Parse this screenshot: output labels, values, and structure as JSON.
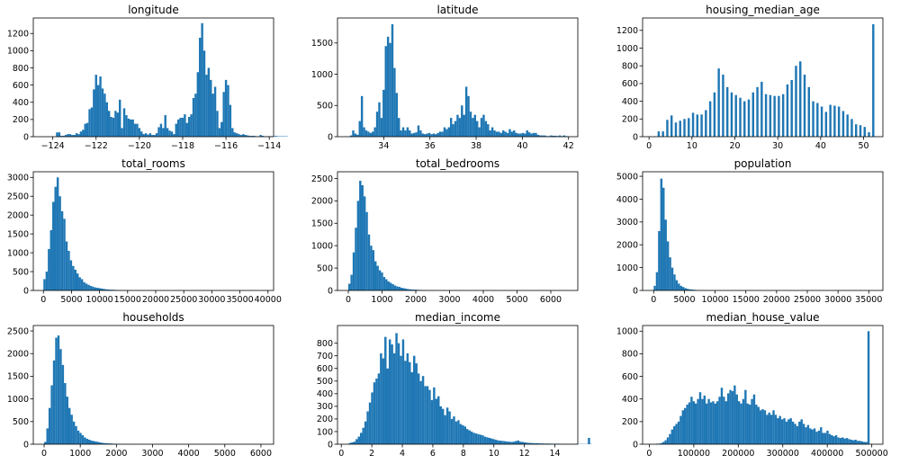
{
  "bar_color": "#1f77b4",
  "chart_data": [
    {
      "type": "bar",
      "title": "longitude",
      "xlim": [
        -124.9,
        -113.8
      ],
      "ylim": [
        0,
        1380
      ],
      "xticks": [
        -124,
        -122,
        -120,
        -118,
        -116,
        -114
      ],
      "yticks": [
        0,
        200,
        400,
        600,
        800,
        1000,
        1200
      ],
      "bin_start": -124.35,
      "bin_width": 0.1,
      "values": [
        0,
        0,
        0,
        0,
        0,
        50,
        50,
        10,
        10,
        20,
        30,
        30,
        20,
        20,
        40,
        30,
        60,
        80,
        150,
        160,
        320,
        340,
        550,
        720,
        600,
        700,
        560,
        500,
        400,
        300,
        230,
        220,
        300,
        280,
        430,
        100,
        330,
        250,
        210,
        200,
        200,
        150,
        150,
        100,
        60,
        30,
        40,
        25,
        40,
        20,
        20,
        40,
        110,
        150,
        100,
        250,
        100,
        70,
        60,
        30,
        150,
        200,
        220,
        220,
        260,
        160,
        230,
        260,
        450,
        500,
        750,
        1150,
        1320,
        1000,
        720,
        800,
        660,
        500,
        580,
        300,
        100,
        170,
        520,
        660,
        600,
        370,
        100,
        50,
        40,
        30,
        20,
        30,
        20,
        15,
        10,
        10,
        10,
        5,
        5,
        20,
        10,
        5,
        5,
        5,
        5,
        5,
        10,
        5,
        5,
        5,
        5,
        5
      ]
    },
    {
      "type": "bar",
      "title": "latitude",
      "xlim": [
        32.0,
        42.4
      ],
      "ylim": [
        0,
        1900
      ],
      "xticks": [
        34,
        36,
        38,
        40,
        42
      ],
      "yticks": [
        0,
        500,
        1000,
        1500
      ],
      "bin_start": 32.54,
      "bin_width": 0.0941,
      "values": [
        20,
        100,
        50,
        30,
        250,
        650,
        150,
        100,
        80,
        60,
        80,
        150,
        400,
        550,
        300,
        750,
        1450,
        1600,
        1500,
        1800,
        1100,
        700,
        300,
        100,
        150,
        100,
        150,
        100,
        50,
        60,
        70,
        180,
        100,
        50,
        40,
        50,
        60,
        40,
        50,
        40,
        60,
        80,
        80,
        150,
        120,
        150,
        300,
        200,
        250,
        350,
        300,
        500,
        350,
        800,
        650,
        400,
        300,
        350,
        250,
        150,
        300,
        350,
        250,
        200,
        100,
        150,
        100,
        80,
        80,
        60,
        100,
        80,
        60,
        120,
        80,
        100,
        60,
        50,
        50,
        60,
        50,
        100,
        70,
        50,
        60,
        60,
        30,
        20,
        20,
        20,
        10,
        10,
        20,
        15,
        15,
        10,
        20,
        10,
        20,
        10
      ]
    },
    {
      "type": "bar",
      "title": "housing_median_age",
      "xlim": [
        -1.5,
        54.5
      ],
      "ylim": [
        0,
        1340
      ],
      "xticks": [
        0,
        10,
        20,
        30,
        40,
        50
      ],
      "yticks": [
        0,
        200,
        400,
        600,
        800,
        1000,
        1200
      ],
      "bin_start": 1,
      "bin_width": 0.51,
      "x_values": [
        1,
        2,
        3,
        4,
        5,
        6,
        7,
        8,
        9,
        10,
        11,
        12,
        13,
        14,
        15,
        16,
        17,
        18,
        19,
        20,
        21,
        22,
        23,
        24,
        25,
        26,
        27,
        28,
        29,
        30,
        31,
        32,
        33,
        34,
        35,
        36,
        37,
        38,
        39,
        40,
        41,
        42,
        43,
        44,
        45,
        46,
        47,
        48,
        49,
        50,
        51,
        52
      ],
      "values": [
        5,
        60,
        60,
        190,
        240,
        160,
        180,
        200,
        210,
        270,
        250,
        250,
        300,
        400,
        500,
        770,
        700,
        560,
        500,
        470,
        440,
        400,
        420,
        500,
        560,
        620,
        480,
        470,
        460,
        460,
        480,
        590,
        640,
        800,
        850,
        700,
        560,
        400,
        380,
        340,
        280,
        360,
        350,
        340,
        290,
        250,
        200,
        140,
        130,
        110,
        50,
        1270
      ]
    },
    {
      "type": "bar",
      "title": "total_rooms",
      "xlim": [
        -1800,
        41000
      ],
      "ylim": [
        0,
        3150
      ],
      "xticks": [
        0,
        5000,
        10000,
        15000,
        20000,
        25000,
        30000,
        35000,
        40000
      ],
      "yticks": [
        0,
        500,
        1000,
        1500,
        2000,
        2500,
        3000
      ],
      "bin_start": 0,
      "bin_width": 393,
      "values": [
        300,
        500,
        1100,
        1600,
        2350,
        2750,
        3000,
        2500,
        2100,
        1900,
        1300,
        1050,
        800,
        650,
        550,
        450,
        350,
        300,
        220,
        180,
        150,
        120,
        100,
        80,
        70,
        60,
        50,
        40,
        30,
        25,
        20,
        18,
        15,
        12,
        10,
        8,
        6,
        5,
        5,
        4,
        4,
        3,
        3,
        3,
        2,
        2,
        2,
        2,
        2,
        1,
        1,
        1,
        1,
        1,
        1,
        1
      ]
    },
    {
      "type": "bar",
      "title": "total_bedrooms",
      "xlim": [
        -320,
        6800
      ],
      "ylim": [
        0,
        2650
      ],
      "xticks": [
        0,
        1000,
        2000,
        3000,
        4000,
        5000,
        6000
      ],
      "yticks": [
        0,
        500,
        1000,
        1500,
        2000,
        2500
      ],
      "bin_start": 0,
      "bin_width": 64.5,
      "values": [
        150,
        350,
        850,
        1400,
        2000,
        2450,
        2350,
        2100,
        1750,
        1250,
        1000,
        900,
        650,
        550,
        450,
        400,
        300,
        250,
        200,
        170,
        140,
        110,
        90,
        80,
        60,
        50,
        40,
        30,
        25,
        20,
        18,
        15,
        12,
        10,
        8,
        6,
        5,
        5,
        4,
        3,
        3,
        2,
        2,
        2,
        1,
        1,
        1,
        1,
        1,
        1
      ]
    },
    {
      "type": "bar",
      "title": "population",
      "xlim": [
        -1800,
        37300
      ],
      "ylim": [
        0,
        5200
      ],
      "xticks": [
        0,
        5000,
        10000,
        15000,
        20000,
        25000,
        30000,
        35000
      ],
      "yticks": [
        0,
        1000,
        2000,
        3000,
        4000,
        5000
      ],
      "bin_start": 0,
      "bin_width": 357,
      "values": [
        200,
        800,
        2600,
        4900,
        4500,
        3100,
        2150,
        1450,
        1000,
        700,
        450,
        300,
        200,
        150,
        100,
        70,
        50,
        40,
        30,
        20,
        15,
        10,
        8,
        6,
        5,
        4,
        3,
        2,
        2,
        2,
        1,
        1,
        1,
        1,
        1
      ]
    },
    {
      "type": "bar",
      "title": "households",
      "xlim": [
        -300,
        6350
      ],
      "ylim": [
        0,
        2620
      ],
      "xticks": [
        0,
        1000,
        2000,
        3000,
        4000,
        5000,
        6000
      ],
      "yticks": [
        0,
        500,
        1000,
        1500,
        2000,
        2500
      ],
      "bin_start": 0,
      "bin_width": 61,
      "values": [
        50,
        350,
        800,
        1300,
        1850,
        2350,
        2400,
        2100,
        1750,
        1350,
        1050,
        800,
        650,
        500,
        400,
        300,
        250,
        200,
        150,
        120,
        100,
        80,
        70,
        60,
        50,
        40,
        30,
        25,
        20,
        18,
        15,
        12,
        10,
        8,
        6,
        5,
        5,
        4,
        3,
        3,
        2,
        2,
        1,
        1,
        1,
        1,
        1,
        1
      ]
    },
    {
      "type": "bar",
      "title": "median_income",
      "xlim": [
        -0.25,
        15.5
      ],
      "ylim": [
        0,
        940
      ],
      "xticks": [
        0,
        2,
        4,
        6,
        8,
        10,
        12,
        14
      ],
      "yticks": [
        0,
        100,
        200,
        300,
        400,
        500,
        600,
        700,
        800
      ],
      "bin_start": 0.5,
      "bin_width": 0.145,
      "values": [
        10,
        15,
        20,
        40,
        60,
        90,
        130,
        180,
        260,
        330,
        410,
        490,
        520,
        560,
        720,
        680,
        850,
        600,
        830,
        790,
        720,
        880,
        800,
        700,
        830,
        660,
        720,
        650,
        570,
        700,
        640,
        560,
        500,
        540,
        460,
        460,
        430,
        350,
        450,
        360,
        380,
        300,
        280,
        230,
        290,
        260,
        200,
        220,
        180,
        190,
        160,
        150,
        140,
        120,
        110,
        100,
        90,
        85,
        80,
        75,
        70,
        60,
        55,
        50,
        45,
        40,
        35,
        30,
        28,
        26,
        24,
        22,
        20,
        18,
        20,
        25,
        30,
        20,
        18,
        15,
        12,
        10,
        10,
        8,
        8,
        8,
        6,
        6,
        5,
        5,
        5,
        4,
        4,
        4,
        4,
        3,
        3,
        3,
        3,
        3,
        3,
        2,
        2,
        2,
        2,
        2,
        2,
        2,
        50,
        2
      ]
    },
    {
      "type": "bar",
      "title": "median_house_value",
      "xlim": [
        -15000,
        525000
      ],
      "ylim": [
        0,
        1050
      ],
      "xticks": [
        0,
        100000,
        200000,
        300000,
        400000,
        500000
      ],
      "yticks": [
        0,
        200,
        400,
        600,
        800,
        1000
      ],
      "bin_start": 15000,
      "bin_width": 4850,
      "values": [
        5,
        5,
        10,
        20,
        35,
        60,
        90,
        130,
        160,
        180,
        200,
        250,
        300,
        320,
        350,
        370,
        420,
        380,
        360,
        400,
        460,
        400,
        430,
        360,
        400,
        370,
        380,
        360,
        380,
        420,
        500,
        420,
        380,
        450,
        480,
        470,
        520,
        440,
        380,
        360,
        400,
        480,
        360,
        350,
        400,
        440,
        350,
        330,
        300,
        310,
        300,
        260,
        280,
        260,
        300,
        260,
        230,
        250,
        220,
        230,
        200,
        220,
        230,
        200,
        180,
        160,
        200,
        220,
        180,
        150,
        170,
        140,
        130,
        140,
        110,
        120,
        150,
        100,
        100,
        120,
        90,
        80,
        70,
        80,
        60,
        55,
        60,
        50,
        55,
        45,
        40,
        35,
        40,
        30,
        30,
        25,
        20,
        20,
        1000
      ]
    }
  ]
}
